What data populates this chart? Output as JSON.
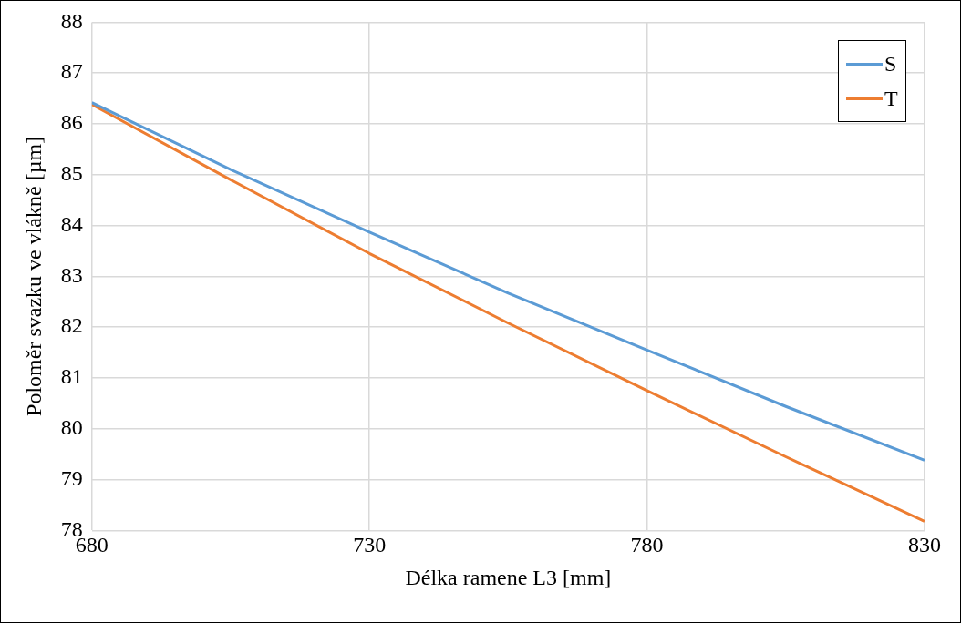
{
  "chart_data": {
    "type": "line",
    "xlabel": "Délka ramene L3 [mm]",
    "ylabel": "Poloměr svazku ve vlákně [µm]",
    "x": [
      680,
      705,
      730,
      755,
      780,
      805,
      830
    ],
    "series": [
      {
        "name": "S",
        "color": "#5b9bd5",
        "values": [
          86.42,
          85.1,
          83.87,
          82.67,
          81.55,
          80.44,
          79.38
        ]
      },
      {
        "name": "T",
        "color": "#ed7d31",
        "values": [
          86.38,
          84.9,
          83.45,
          82.08,
          80.75,
          79.45,
          78.18
        ]
      }
    ],
    "xlim": [
      680,
      830
    ],
    "xticks": [
      680,
      730,
      780,
      830
    ],
    "ylim": [
      78,
      88
    ],
    "yticks": [
      78,
      79,
      80,
      81,
      82,
      83,
      84,
      85,
      86,
      87,
      88
    ],
    "grid": true,
    "legend": "top right",
    "marker": "none",
    "line_style": "solid"
  }
}
